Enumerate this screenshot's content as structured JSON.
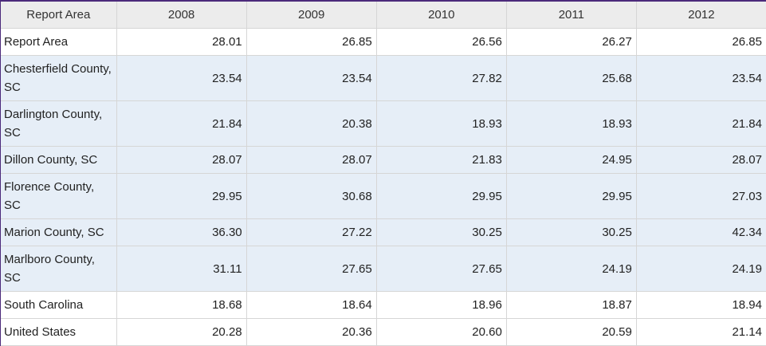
{
  "header": {
    "area_label": "Report Area",
    "years": [
      "2008",
      "2009",
      "2010",
      "2011",
      "2012"
    ]
  },
  "rows": [
    {
      "name": "Report Area",
      "values": [
        "28.01",
        "26.85",
        "26.56",
        "26.27",
        "26.85"
      ]
    },
    {
      "name": "Chesterfield County, SC",
      "values": [
        "23.54",
        "23.54",
        "27.82",
        "25.68",
        "23.54"
      ]
    },
    {
      "name": "Darlington County, SC",
      "values": [
        "21.84",
        "20.38",
        "18.93",
        "18.93",
        "21.84"
      ]
    },
    {
      "name": "Dillon County, SC",
      "values": [
        "28.07",
        "28.07",
        "21.83",
        "24.95",
        "28.07"
      ]
    },
    {
      "name": "Florence County, SC",
      "values": [
        "29.95",
        "30.68",
        "29.95",
        "29.95",
        "27.03"
      ]
    },
    {
      "name": "Marion County, SC",
      "values": [
        "36.30",
        "27.22",
        "30.25",
        "30.25",
        "42.34"
      ]
    },
    {
      "name": "Marlboro County, SC",
      "values": [
        "31.11",
        "27.65",
        "27.65",
        "24.19",
        "24.19"
      ]
    },
    {
      "name": "South Carolina",
      "values": [
        "18.68",
        "18.64",
        "18.96",
        "18.87",
        "18.94"
      ]
    },
    {
      "name": "United States",
      "values": [
        "20.28",
        "20.36",
        "20.60",
        "20.59",
        "21.14"
      ]
    }
  ]
}
